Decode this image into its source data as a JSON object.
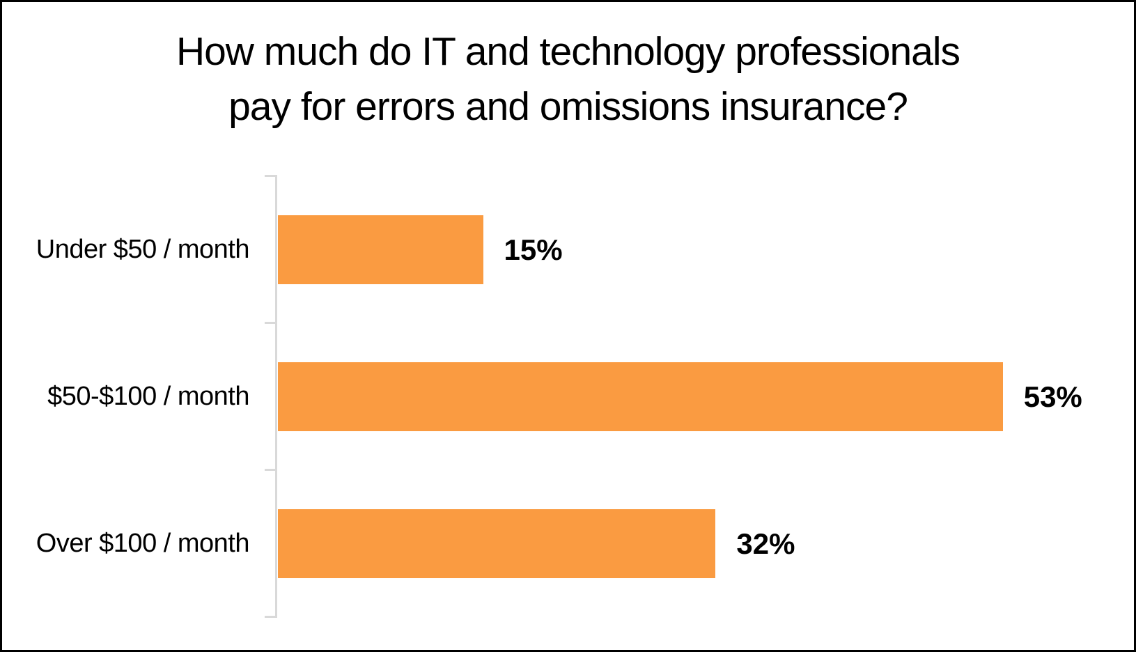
{
  "frame": {
    "background": "#ffffff",
    "border_color": "#000000"
  },
  "chart_data": {
    "type": "bar",
    "orientation": "horizontal",
    "title": "How much do IT and technology professionals pay for errors and omissions insurance?",
    "title_lines": [
      "How much do IT and technology professionals",
      "pay for errors and omissions insurance?"
    ],
    "categories": [
      "Under $50 / month",
      "$50-$100 / month",
      "Over $100 / month"
    ],
    "values": [
      15,
      53,
      32
    ],
    "value_labels": [
      "15%",
      "53%",
      "32%"
    ],
    "xlim": [
      0,
      55
    ],
    "xlabel": "",
    "ylabel": "",
    "grid": false,
    "legend": false,
    "bar_color": "#FA9B41",
    "axis_line_color": "#D9D9D9",
    "text_color": "#000000"
  }
}
